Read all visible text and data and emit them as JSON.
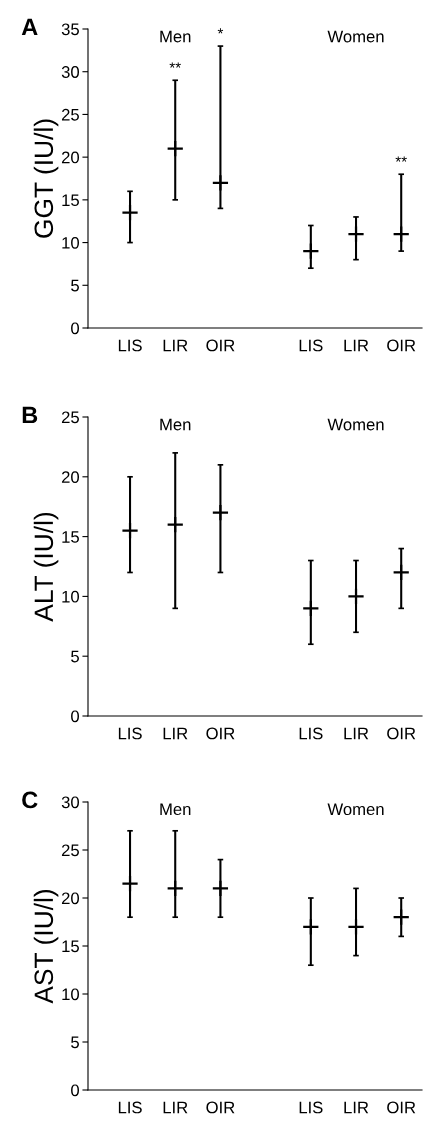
{
  "chart_data": [
    {
      "type": "scatter",
      "marker": "cross",
      "title": "A",
      "ylabel": "GGT (IU/l)",
      "categories": [
        "LIS",
        "LIR",
        "OIR",
        null,
        "LIS",
        "LIR",
        "OIR"
      ],
      "color": "#000000",
      "values": [
        13.5,
        21,
        17,
        null,
        9,
        11,
        11
      ],
      "errors": [
        [
          10,
          16
        ],
        [
          15,
          29
        ],
        [
          14,
          33
        ],
        null,
        [
          7,
          12
        ],
        [
          8,
          13
        ],
        [
          9,
          18
        ]
      ],
      "ylim": [
        0,
        35
      ],
      "yticks": [
        0,
        5,
        10,
        15,
        20,
        25,
        30,
        35
      ],
      "annotations": [
        "Men",
        "Women",
        {
          "text": "**",
          "x": "LIR",
          "y": 29
        },
        {
          "text": "*",
          "x": "OIR",
          "y": 33
        },
        {
          "text": "**",
          "y": 18
        }
      ]
    },
    {
      "type": "scatter",
      "marker": "cross",
      "title": "B",
      "ylabel": "ALT (IU/l)",
      "categories": [
        "LIS",
        "LIR",
        "OIR",
        null,
        "LIS",
        "LIR",
        "OIR"
      ],
      "color": "#000000",
      "values": [
        15.5,
        16,
        17,
        null,
        9,
        10,
        12
      ],
      "errors": [
        [
          12,
          20
        ],
        [
          9,
          22
        ],
        [
          12,
          21
        ],
        null,
        [
          6,
          13
        ],
        [
          7,
          13
        ],
        [
          9,
          14
        ]
      ],
      "ylim": [
        0,
        25
      ],
      "yticks": [
        0,
        5,
        10,
        15,
        20,
        25
      ],
      "annotations": [
        "Men",
        "Women"
      ]
    },
    {
      "type": "scatter",
      "marker": "cross",
      "title": "C",
      "ylabel": "AST (IU/l)",
      "categories": [
        "LIS",
        "LIR",
        "OIR",
        null,
        "LIS",
        "LIR",
        "OIR"
      ],
      "color": "#000000",
      "values": [
        21.5,
        21,
        21,
        null,
        17,
        17,
        18
      ],
      "errors": [
        [
          18,
          27
        ],
        [
          18,
          27
        ],
        [
          18,
          24
        ],
        null,
        [
          13,
          20
        ],
        [
          14,
          21
        ],
        [
          16,
          20
        ]
      ],
      "ylim": [
        0,
        30
      ],
      "yticks": [
        0,
        5,
        10,
        15,
        20,
        25,
        30
      ],
      "annotations": [
        "Men",
        "Women"
      ]
    }
  ]
}
